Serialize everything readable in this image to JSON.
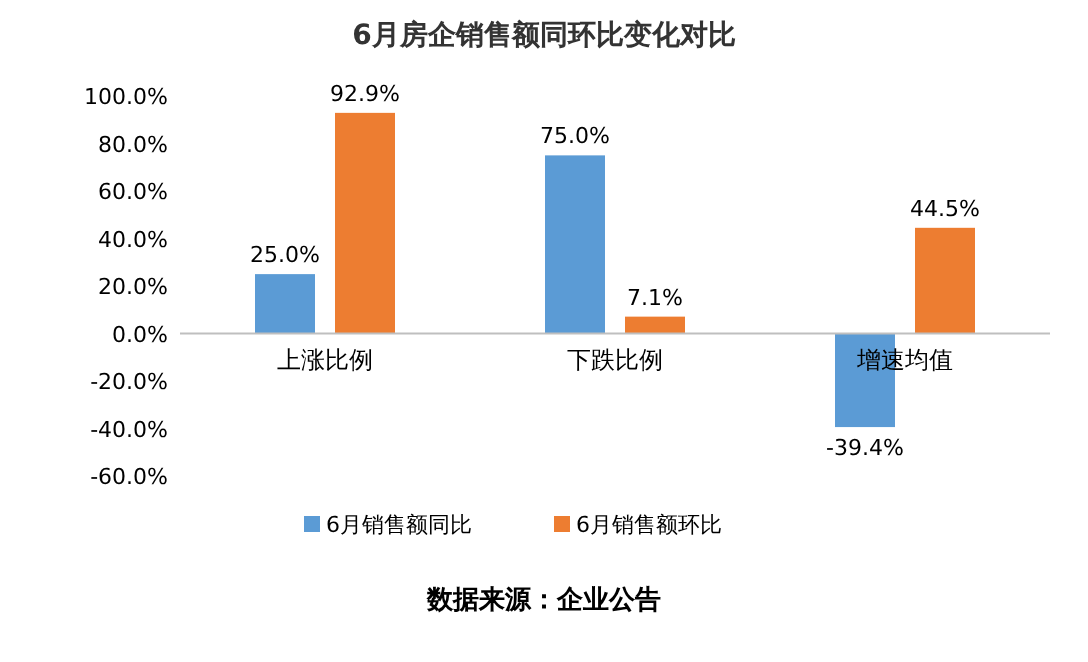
{
  "chart_data": {
    "type": "bar",
    "title": "6月房企销售额同环比变化对比",
    "categories": [
      "上涨比例",
      "下跌比例",
      "增速均值"
    ],
    "series": [
      {
        "name": "6月销售额同比",
        "color": "#5b9bd5",
        "values": [
          25.0,
          75.0,
          -39.4
        ],
        "value_labels": [
          "25.0%",
          "75.0%",
          "-39.4%"
        ]
      },
      {
        "name": "6月销售额环比",
        "color": "#ed7d31",
        "values": [
          92.9,
          7.1,
          44.5
        ],
        "value_labels": [
          "92.9%",
          "7.1%",
          "44.5%"
        ]
      }
    ],
    "ylim": [
      -60,
      100
    ],
    "yticks": [
      {
        "value": -60,
        "label": "-60.0%"
      },
      {
        "value": -40,
        "label": "-40.0%"
      },
      {
        "value": -20,
        "label": "-20.0%"
      },
      {
        "value": 0,
        "label": "0.0%"
      },
      {
        "value": 20,
        "label": "20.0%"
      },
      {
        "value": 40,
        "label": "40.0%"
      },
      {
        "value": 60,
        "label": "60.0%"
      },
      {
        "value": 80,
        "label": "80.0%"
      },
      {
        "value": 100,
        "label": "100.0%"
      }
    ],
    "grid": false,
    "legend": "bottom",
    "annotations": [
      "数据来源：企业公告"
    ]
  }
}
